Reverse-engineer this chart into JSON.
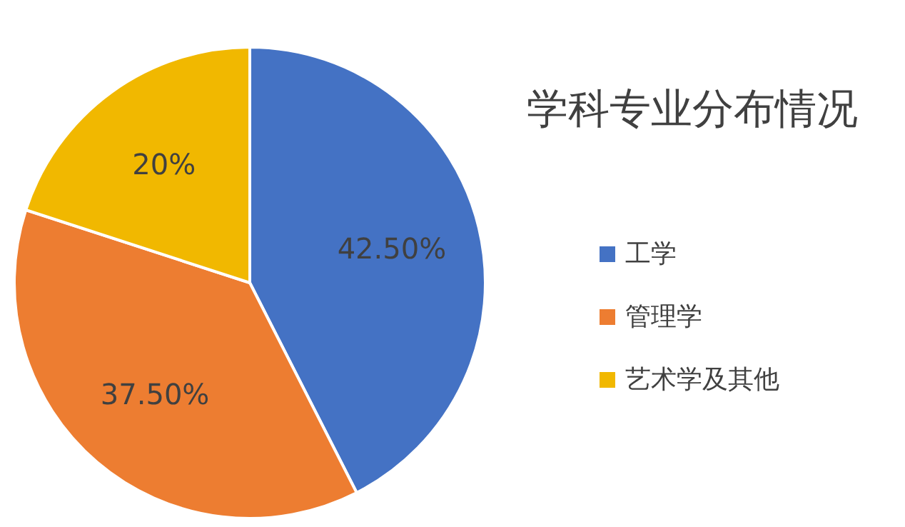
{
  "chart_data": {
    "type": "pie",
    "title": "学科专业分布情况",
    "categories": [
      "工学",
      "管理学",
      "艺术学及其他"
    ],
    "values": [
      42.5,
      37.5,
      20
    ],
    "colors": [
      "#4472c4",
      "#ed7d31",
      "#f1b800"
    ],
    "value_labels": [
      "42.50%",
      "37.50%",
      "20%"
    ],
    "legend": "right"
  }
}
